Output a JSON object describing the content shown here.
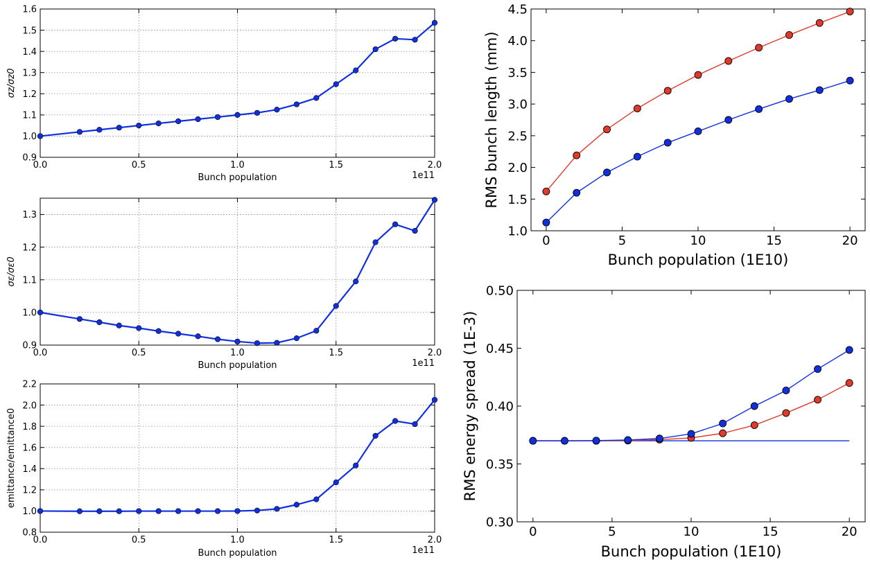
{
  "figure_colors": {
    "blue": "#1030e0",
    "red": "#e03a2a",
    "marker_edge": "#000000",
    "grid": "#888888"
  },
  "chart_data": [
    {
      "id": "sigma_z",
      "type": "line",
      "xlabel": "Bunch population",
      "ylabel": "σz/σz0",
      "x_offset_label": "1e11",
      "xlim": [
        0.0,
        2.0
      ],
      "ylim": [
        0.9,
        1.6
      ],
      "xticks": [
        0.0,
        0.5,
        1.0,
        1.5,
        2.0
      ],
      "xtick_labels": [
        "0.0",
        "0.5",
        "1.0",
        "1.5",
        "2.0"
      ],
      "yticks": [
        0.9,
        1.0,
        1.1,
        1.2,
        1.3,
        1.4,
        1.5,
        1.6
      ],
      "ytick_labels": [
        "0.9",
        "1.0",
        "1.1",
        "1.2",
        "1.3",
        "1.4",
        "1.5",
        "1.6"
      ],
      "grid": true,
      "series": [
        {
          "color": "blue",
          "marker": "circle",
          "x": [
            0.0,
            0.2,
            0.3,
            0.4,
            0.5,
            0.6,
            0.7,
            0.8,
            0.9,
            1.0,
            1.1,
            1.2,
            1.3,
            1.4,
            1.5,
            1.6,
            1.7,
            1.8,
            1.9,
            2.0
          ],
          "y": [
            1.0,
            1.02,
            1.03,
            1.04,
            1.05,
            1.06,
            1.07,
            1.08,
            1.09,
            1.1,
            1.11,
            1.125,
            1.15,
            1.18,
            1.245,
            1.31,
            1.41,
            1.46,
            1.455,
            1.535
          ]
        }
      ]
    },
    {
      "id": "sigma_e",
      "type": "line",
      "xlabel": "Bunch population",
      "ylabel": "σε/σε0",
      "x_offset_label": "1e11",
      "xlim": [
        0.0,
        2.0
      ],
      "ylim": [
        0.9,
        1.35
      ],
      "xticks": [
        0.0,
        0.5,
        1.0,
        1.5,
        2.0
      ],
      "xtick_labels": [
        "0.0",
        "0.5",
        "1.0",
        "1.5",
        "2.0"
      ],
      "yticks": [
        0.9,
        1.0,
        1.1,
        1.2,
        1.3
      ],
      "ytick_labels": [
        "0.9",
        "1.0",
        "1.1",
        "1.2",
        "1.3"
      ],
      "grid": true,
      "series": [
        {
          "color": "blue",
          "marker": "circle",
          "x": [
            0.0,
            0.2,
            0.3,
            0.4,
            0.5,
            0.6,
            0.7,
            0.8,
            0.9,
            1.0,
            1.1,
            1.2,
            1.3,
            1.4,
            1.5,
            1.6,
            1.7,
            1.8,
            1.9,
            2.0
          ],
          "y": [
            1.0,
            0.98,
            0.97,
            0.96,
            0.952,
            0.943,
            0.935,
            0.927,
            0.918,
            0.911,
            0.906,
            0.907,
            0.921,
            0.944,
            1.02,
            1.095,
            1.215,
            1.27,
            1.25,
            1.345
          ]
        }
      ]
    },
    {
      "id": "emittance",
      "type": "line",
      "xlabel": "Bunch population",
      "ylabel": "emittance/emittance0",
      "x_offset_label": "1e11",
      "xlim": [
        0.0,
        2.0
      ],
      "ylim": [
        0.8,
        2.2
      ],
      "xticks": [
        0.0,
        0.5,
        1.0,
        1.5,
        2.0
      ],
      "xtick_labels": [
        "0.0",
        "0.5",
        "1.0",
        "1.5",
        "2.0"
      ],
      "yticks": [
        0.8,
        1.0,
        1.2,
        1.4,
        1.6,
        1.8,
        2.0,
        2.2
      ],
      "ytick_labels": [
        "0.8",
        "1.0",
        "1.2",
        "1.4",
        "1.6",
        "1.8",
        "2.0",
        "2.2"
      ],
      "grid": true,
      "series": [
        {
          "color": "blue",
          "marker": "circle",
          "x": [
            0.0,
            0.2,
            0.3,
            0.4,
            0.5,
            0.6,
            0.7,
            0.8,
            0.9,
            1.0,
            1.1,
            1.2,
            1.3,
            1.4,
            1.5,
            1.6,
            1.7,
            1.8,
            1.9,
            2.0
          ],
          "y": [
            1.0,
            0.998,
            0.998,
            0.998,
            0.999,
            0.999,
            0.999,
            0.999,
            0.999,
            1.0,
            1.005,
            1.02,
            1.06,
            1.11,
            1.27,
            1.43,
            1.71,
            1.85,
            1.82,
            2.05
          ]
        }
      ]
    },
    {
      "id": "bunch_length",
      "type": "line",
      "xlabel": "Bunch population (1E10)",
      "ylabel": "RMS bunch length (mm)",
      "xlim": [
        -1,
        21
      ],
      "ylim": [
        1.0,
        4.5
      ],
      "xticks": [
        0,
        5,
        10,
        15,
        20
      ],
      "xtick_labels": [
        "0",
        "5",
        "10",
        "15",
        "20"
      ],
      "yticks": [
        1.0,
        1.5,
        2.0,
        2.5,
        3.0,
        3.5,
        4.0,
        4.5
      ],
      "ytick_labels": [
        "1.0",
        "1.5",
        "2.0",
        "2.5",
        "3.0",
        "3.5",
        "4.0",
        "4.5"
      ],
      "grid": false,
      "series": [
        {
          "color": "red",
          "marker": "circle",
          "x": [
            0,
            2,
            4,
            6,
            8,
            10,
            12,
            14,
            16,
            18,
            20
          ],
          "y": [
            1.62,
            2.19,
            2.6,
            2.93,
            3.21,
            3.46,
            3.68,
            3.89,
            4.09,
            4.28,
            4.46
          ]
        },
        {
          "color": "blue",
          "marker": "circle",
          "x": [
            0,
            2,
            4,
            6,
            8,
            10,
            12,
            14,
            16,
            18,
            20
          ],
          "y": [
            1.13,
            1.6,
            1.92,
            2.17,
            2.39,
            2.57,
            2.75,
            2.92,
            3.08,
            3.22,
            3.37
          ]
        }
      ]
    },
    {
      "id": "energy_spread",
      "type": "line",
      "xlabel": "Bunch population (1E10)",
      "ylabel": "RMS energy spread (1E-3)",
      "xlim": [
        -1,
        21
      ],
      "ylim": [
        0.3,
        0.5
      ],
      "xticks": [
        0,
        5,
        10,
        15,
        20
      ],
      "xtick_labels": [
        "0",
        "5",
        "10",
        "15",
        "20"
      ],
      "yticks": [
        0.3,
        0.35,
        0.4,
        0.45,
        0.5
      ],
      "ytick_labels": [
        "0.30",
        "0.35",
        "0.40",
        "0.45",
        "0.50"
      ],
      "grid": false,
      "series": [
        {
          "color": "blue",
          "marker": "none",
          "x": [
            0,
            20
          ],
          "y": [
            0.37,
            0.37
          ]
        },
        {
          "color": "red",
          "marker": "circle",
          "x": [
            0,
            2,
            4,
            6,
            8,
            10,
            12,
            14,
            16,
            18,
            20
          ],
          "y": [
            0.37,
            0.37,
            0.37,
            0.3702,
            0.371,
            0.3725,
            0.3765,
            0.3835,
            0.394,
            0.4055,
            0.42
          ]
        },
        {
          "color": "blue",
          "marker": "circle",
          "x": [
            0,
            2,
            4,
            6,
            8,
            10,
            12,
            14,
            16,
            18,
            20
          ],
          "y": [
            0.37,
            0.37,
            0.3702,
            0.3707,
            0.372,
            0.376,
            0.385,
            0.4,
            0.4135,
            0.432,
            0.4485
          ]
        }
      ]
    }
  ]
}
